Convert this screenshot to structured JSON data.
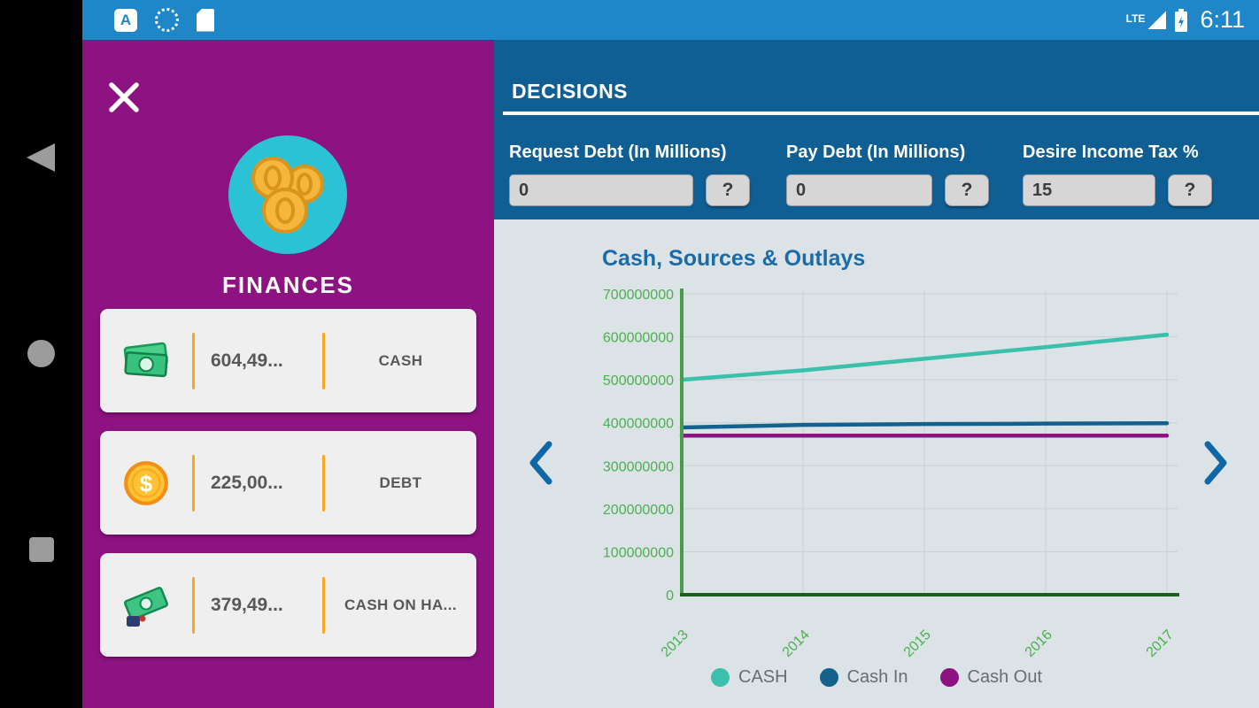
{
  "status_bar": {
    "time": "6:11",
    "lte_label": "LTE",
    "a_badge": "A",
    "icons": [
      "a-app-icon",
      "dotted-circle-icon",
      "sd-card-icon",
      "lte-signal-icon",
      "battery-charging-icon"
    ]
  },
  "nav_bar": {
    "icons": [
      "back-icon",
      "home-icon",
      "recents-icon"
    ]
  },
  "drawer": {
    "title": "FINANCES",
    "cards": [
      {
        "icon": "cash-bills-icon",
        "value": "604,49...",
        "label": "CASH"
      },
      {
        "icon": "coin-dollar-icon",
        "value": "225,00...",
        "label": "DEBT"
      },
      {
        "icon": "cash-on-hand-icon",
        "value": "379,49...",
        "label": "CASH ON HA..."
      }
    ]
  },
  "decisions": {
    "title": "DECISIONS",
    "fields": [
      {
        "label": "Request Debt (In Millions)",
        "value": "0",
        "help_label": "?"
      },
      {
        "label": "Pay Debt (In Millions)",
        "value": "0",
        "help_label": "?"
      },
      {
        "label": "Desire Income Tax %",
        "value": "15",
        "help_label": "?"
      }
    ]
  },
  "chart_data": {
    "type": "line",
    "title": "Cash, Sources & Outlays",
    "x": [
      2013,
      2014,
      2015,
      2016,
      2017
    ],
    "series": [
      {
        "name": "CASH",
        "color": "#3bc0ac",
        "values": [
          500000000,
          522000000,
          549000000,
          576000000,
          605000000
        ]
      },
      {
        "name": "Cash In",
        "color": "#15618e",
        "values": [
          389000000,
          395000000,
          397000000,
          398000000,
          399000000
        ]
      },
      {
        "name": "Cash Out",
        "color": "#8e1382",
        "values": [
          370000000,
          370000000,
          370000000,
          370000000,
          370000000
        ]
      }
    ],
    "xlabel": "",
    "ylabel": "",
    "ylim": [
      0,
      700000000
    ],
    "ytick_step": 100000000,
    "grid": true,
    "legend_position": "bottom",
    "axis_color": "#43a047",
    "x_axis_color": "#1b5e20",
    "tick_label_color": "#4caf50",
    "grid_color": "#c8d0d6"
  },
  "theme": {
    "status_bar_blue": "#1f87c7",
    "header_blue": "#0f5e94",
    "drawer_purple": "#8e1382",
    "card_divider_orange": "#f7a823",
    "chart_bg": "#dce3e7",
    "chart_title_blue": "#1a6ca9",
    "chevron_blue": "#0e68a5",
    "avatar_cyan": "#2bc2d6"
  }
}
